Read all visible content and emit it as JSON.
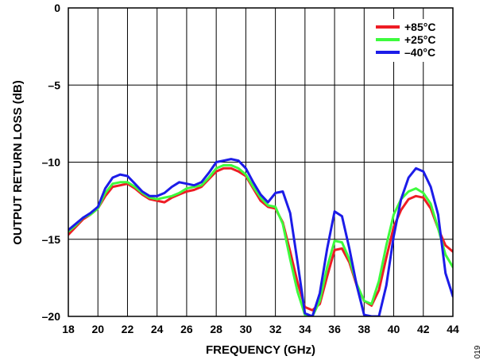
{
  "figure_number": "019",
  "chart_data": {
    "type": "line",
    "xlabel": "FREQUENCY (GHz)",
    "ylabel": "OUTPUT RETURN LOSS (dB)",
    "xlim": [
      18,
      44
    ],
    "ylim": [
      -20,
      0
    ],
    "xticks": [
      18,
      20,
      22,
      24,
      26,
      28,
      30,
      32,
      34,
      36,
      38,
      40,
      42,
      44
    ],
    "yticks": [
      0,
      -5,
      -10,
      -15,
      -20
    ],
    "ytick_labels": [
      "0",
      "–5",
      "–10",
      "–15",
      "–20"
    ],
    "grid": true,
    "legend_position": "top-right",
    "series": [
      {
        "name": "+85°C",
        "color": "#ee1c24",
        "x": [
          18,
          18.5,
          19,
          19.5,
          20,
          20.5,
          21,
          21.5,
          22,
          22.5,
          23,
          23.5,
          24,
          24.5,
          25,
          25.5,
          26,
          26.5,
          27,
          27.5,
          28,
          28.5,
          29,
          29.5,
          30,
          30.5,
          31,
          31.5,
          32,
          32.5,
          33,
          33.5,
          34,
          34.5,
          35,
          35.5,
          36,
          36.5,
          37,
          37.5,
          38,
          38.5,
          39,
          39.5,
          40,
          40.5,
          41,
          41.5,
          42,
          42.5,
          43,
          43.5,
          44
        ],
        "y": [
          -14.7,
          -14.2,
          -13.7,
          -13.4,
          -13.0,
          -12.2,
          -11.6,
          -11.5,
          -11.4,
          -11.7,
          -12.1,
          -12.4,
          -12.5,
          -12.6,
          -12.3,
          -12.1,
          -11.9,
          -11.8,
          -11.6,
          -11.1,
          -10.6,
          -10.4,
          -10.4,
          -10.6,
          -10.9,
          -11.7,
          -12.5,
          -12.9,
          -13.0,
          -13.9,
          -15.8,
          -17.8,
          -19.4,
          -19.6,
          -19.2,
          -17.4,
          -15.7,
          -15.6,
          -16.5,
          -18.0,
          -19.0,
          -19.3,
          -18.3,
          -16.2,
          -14.2,
          -13.1,
          -12.4,
          -12.2,
          -12.3,
          -13.0,
          -14.3,
          -15.4,
          -15.8
        ]
      },
      {
        "name": "+25°C",
        "color": "#3dfb3d",
        "x": [
          18,
          18.5,
          19,
          19.5,
          20,
          20.5,
          21,
          21.5,
          22,
          22.5,
          23,
          23.5,
          24,
          24.5,
          25,
          25.5,
          26,
          26.5,
          27,
          27.5,
          28,
          28.5,
          29,
          29.5,
          30,
          30.5,
          31,
          31.5,
          32,
          32.5,
          33,
          33.5,
          34,
          34.5,
          35,
          35.5,
          36,
          36.5,
          37,
          37.5,
          38,
          38.5,
          39,
          39.5,
          40,
          40.5,
          41,
          41.5,
          42,
          42.5,
          43,
          43.5,
          44
        ],
        "y": [
          -14.5,
          -14.1,
          -13.6,
          -13.4,
          -13.0,
          -12.0,
          -11.4,
          -11.3,
          -11.3,
          -11.6,
          -12.0,
          -12.3,
          -12.4,
          -12.3,
          -12.2,
          -12.0,
          -11.7,
          -11.6,
          -11.5,
          -11.0,
          -10.4,
          -10.2,
          -10.2,
          -10.4,
          -10.8,
          -11.6,
          -12.3,
          -12.8,
          -12.9,
          -14.0,
          -16.3,
          -18.4,
          -19.9,
          -20.0,
          -19.0,
          -16.8,
          -15.1,
          -15.2,
          -16.3,
          -17.9,
          -19.0,
          -19.2,
          -17.7,
          -15.4,
          -13.4,
          -12.4,
          -11.9,
          -11.7,
          -12.0,
          -12.7,
          -14.3,
          -16.0,
          -16.8
        ]
      },
      {
        "name": "–40°C",
        "color": "#1c1ce8",
        "x": [
          18,
          18.5,
          19,
          19.5,
          20,
          20.5,
          21,
          21.5,
          22,
          22.5,
          23,
          23.5,
          24,
          24.5,
          25,
          25.5,
          26,
          26.5,
          27,
          27.5,
          28,
          28.5,
          29,
          29.5,
          30,
          30.5,
          31,
          31.5,
          32,
          32.5,
          33,
          33.5,
          34,
          34.5,
          35,
          35.5,
          36,
          36.5,
          37,
          37.5,
          38,
          38.5,
          39,
          39.5,
          40,
          40.5,
          41,
          41.5,
          42,
          42.5,
          43,
          43.5,
          44
        ],
        "y": [
          -14.4,
          -14.0,
          -13.6,
          -13.3,
          -12.9,
          -11.7,
          -11.0,
          -10.8,
          -10.9,
          -11.4,
          -11.9,
          -12.2,
          -12.2,
          -12.0,
          -11.6,
          -11.3,
          -11.4,
          -11.5,
          -11.3,
          -10.7,
          -10.0,
          -9.9,
          -9.8,
          -9.9,
          -10.4,
          -11.3,
          -12.1,
          -12.6,
          -12.0,
          -11.9,
          -13.3,
          -16.5,
          -19.8,
          -20.0,
          -18.5,
          -15.6,
          -13.2,
          -13.5,
          -15.6,
          -18.0,
          -19.9,
          -20.0,
          -20.0,
          -18.0,
          -14.8,
          -12.4,
          -11.0,
          -10.4,
          -10.6,
          -11.6,
          -13.4,
          -17.2,
          -18.7
        ]
      }
    ]
  }
}
